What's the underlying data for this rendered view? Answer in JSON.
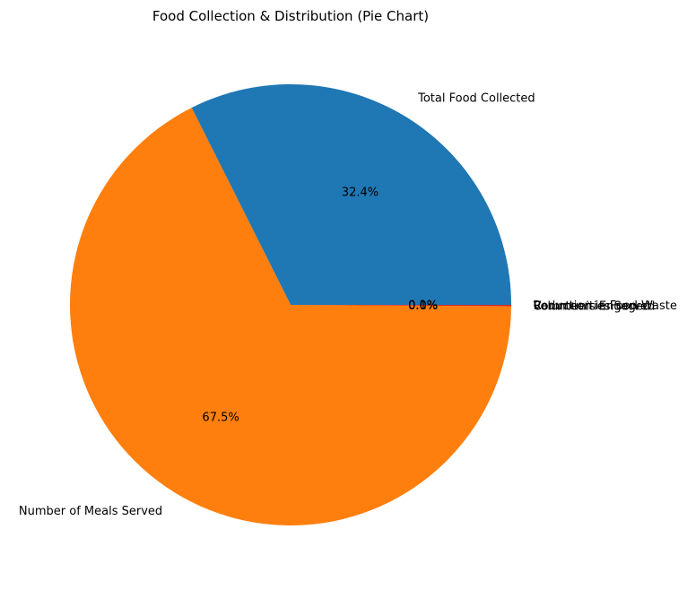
{
  "chart_data": {
    "type": "pie",
    "title": "Food Collection & Distribution (Pie Chart)",
    "slices": [
      {
        "label": "Total Food Collected",
        "value": 32.4,
        "pct_label": "32.4%",
        "color": "#1f77b4"
      },
      {
        "label": "Number of Meals Served",
        "value": 67.5,
        "pct_label": "67.5%",
        "color": "#ff7f0e"
      },
      {
        "label": "Volunteers Engaged",
        "value": 0.0,
        "pct_label": "0.0%",
        "color": "#2ca02c"
      },
      {
        "label": "Communities Served",
        "value": 0.0,
        "pct_label": "0.0%",
        "color": "#9467bd"
      },
      {
        "label": "Reduction in Food Waste",
        "value": 0.1,
        "pct_label": "0.1%",
        "color": "#d62728"
      }
    ]
  }
}
